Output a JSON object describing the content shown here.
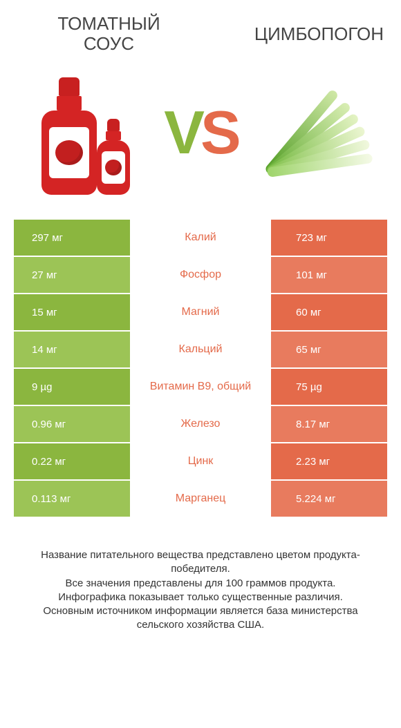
{
  "header": {
    "left_line1": "Томатный",
    "left_line2": "соус",
    "right": "Цимбопогон"
  },
  "vs": {
    "v": "V",
    "s": "S"
  },
  "colors": {
    "left_col": "#8bb63f",
    "left_col_alt": "#9cc456",
    "right_col": "#e46a4a",
    "right_col_alt": "#e87b5e",
    "mid_text": "#e46a4a",
    "vs_v": "#8bb63f",
    "vs_s": "#e46a4a"
  },
  "lemongrass_stalks": [
    {
      "rotate": -50,
      "gradient_from": "#4f9b22",
      "gradient_to": "#cfe8a6"
    },
    {
      "rotate": -40,
      "gradient_from": "#5fa92e",
      "gradient_to": "#d9eeb4"
    },
    {
      "rotate": -32,
      "gradient_from": "#6fb63a",
      "gradient_to": "#e4f3c4"
    },
    {
      "rotate": -24,
      "gradient_from": "#7fc048",
      "gradient_to": "#ecf6d2"
    },
    {
      "rotate": -16,
      "gradient_from": "#8fca58",
      "gradient_to": "#f1f8de"
    },
    {
      "rotate": -8,
      "gradient_from": "#9ed46a",
      "gradient_to": "#f5fae7"
    }
  ],
  "rows": [
    {
      "left": "297 мг",
      "mid": "Калий",
      "right": "723 мг"
    },
    {
      "left": "27 мг",
      "mid": "Фосфор",
      "right": "101 мг"
    },
    {
      "left": "15 мг",
      "mid": "Магний",
      "right": "60 мг"
    },
    {
      "left": "14 мг",
      "mid": "Кальций",
      "right": "65 мг"
    },
    {
      "left": "9 µg",
      "mid": "Витамин B9, общий",
      "right": "75 µg"
    },
    {
      "left": "0.96 мг",
      "mid": "Железо",
      "right": "8.17 мг"
    },
    {
      "left": "0.22 мг",
      "mid": "Цинк",
      "right": "2.23 мг"
    },
    {
      "left": "0.113 мг",
      "mid": "Марганец",
      "right": "5.224 мг"
    }
  ],
  "footer": {
    "l1": "Название питательного вещества представлено цветом продукта-победителя.",
    "l2": "Все значения представлены для 100 граммов продукта.",
    "l3": "Инфографика показывает только существенные различия.",
    "l4": "Основным источником информации является база министерства сельского хозяйства США."
  }
}
